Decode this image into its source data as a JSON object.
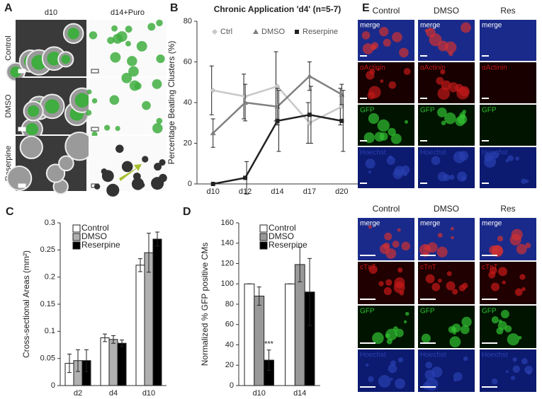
{
  "panel_a": {
    "label": "A",
    "columns": [
      "d10",
      "d14+Puro"
    ],
    "rows": [
      "Control",
      "DMSO",
      "Reserpine"
    ]
  },
  "panel_e": {
    "label": "E",
    "top": {
      "columns": [
        "Control",
        "DMSO",
        "Res"
      ],
      "rows": [
        "merge",
        "αActinin",
        "GFP",
        "Hoechst"
      ]
    },
    "bottom": {
      "columns": [
        "Control",
        "DMSO",
        "Res"
      ],
      "rows": [
        "merge",
        "cTnT",
        "GFP",
        "Hoechst"
      ]
    }
  },
  "chart_data": [
    {
      "type": "line",
      "panel_label": "B",
      "title": "Chronic Application 'd4' (n=5-7)",
      "y_label": "Percentage Beating Clusters (%)",
      "categories": [
        "d10",
        "d12",
        "d14",
        "d17",
        "d20"
      ],
      "ylim": [
        0,
        80
      ],
      "yticks": [
        0,
        20,
        40,
        60,
        80
      ],
      "series": [
        {
          "name": "Ctrl",
          "color": "#c8c8c8",
          "marker": "diamond",
          "values": [
            46,
            43,
            48,
            30,
            38
          ],
          "errors": [
            12,
            11,
            17,
            10,
            9
          ]
        },
        {
          "name": "DMSO",
          "color": "#808080",
          "marker": "triangle",
          "values": [
            25,
            40,
            38,
            53,
            44
          ],
          "errors": [
            7,
            9,
            9,
            7,
            5
          ]
        },
        {
          "name": "Reserpine",
          "color": "#222222",
          "marker": "square",
          "values": [
            0,
            3,
            31,
            34,
            31
          ],
          "errors": [
            0,
            8,
            15,
            14,
            15
          ]
        }
      ]
    },
    {
      "type": "bar",
      "panel_label": "C",
      "y_label": "Cross-sectional Areas (mm²)",
      "categories": [
        "d2",
        "d4",
        "d10"
      ],
      "ylim": [
        0,
        0.3
      ],
      "yticks": [
        0,
        0.05,
        0.1,
        0.15,
        0.2,
        0.25,
        0.3
      ],
      "series": [
        {
          "name": "Control",
          "color": "#ffffff",
          "values": [
            0.041,
            0.088,
            0.222
          ],
          "errors": [
            0.017,
            0.007,
            0.012
          ]
        },
        {
          "name": "DMSO",
          "color": "#b0b0b0",
          "values": [
            0.046,
            0.085,
            0.245
          ],
          "errors": [
            0.02,
            0.007,
            0.036
          ]
        },
        {
          "name": "Reserpine",
          "color": "#000000",
          "values": [
            0.046,
            0.078,
            0.27
          ],
          "errors": [
            0.02,
            0.006,
            0.013
          ]
        }
      ]
    },
    {
      "type": "bar",
      "panel_label": "D",
      "y_label": "Normalized % GFP positive CMs",
      "categories": [
        "d10",
        "d14"
      ],
      "ylim": [
        0,
        160
      ],
      "yticks": [
        0,
        20,
        40,
        60,
        80,
        100,
        120,
        140,
        160
      ],
      "annotation": "***",
      "series": [
        {
          "name": "Control",
          "color": "#ffffff",
          "values": [
            100,
            100
          ],
          "errors": [
            0,
            0
          ]
        },
        {
          "name": "DMSO",
          "color": "#999999",
          "values": [
            88,
            119
          ],
          "errors": [
            9,
            17
          ]
        },
        {
          "name": "Reserpine",
          "color": "#000000",
          "values": [
            25,
            92
          ],
          "errors": [
            10,
            33
          ]
        }
      ]
    }
  ]
}
